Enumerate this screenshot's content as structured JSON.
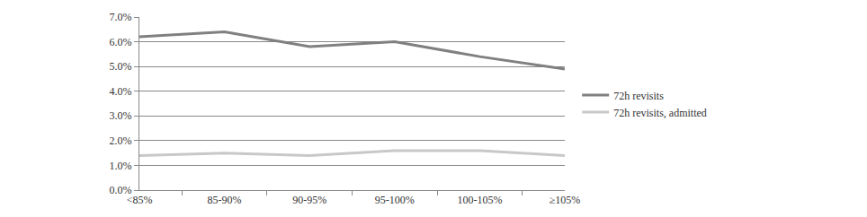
{
  "chart_data": {
    "type": "line",
    "categories": [
      "<85%",
      "85-90%",
      "90-95%",
      "95-100%",
      "100-105%",
      "≥105%"
    ],
    "series": [
      {
        "name": "72h revisits",
        "color": "#808080",
        "values": [
          6.2,
          6.4,
          5.8,
          6.0,
          5.4,
          4.9
        ]
      },
      {
        "name": "72h revisits, admitted",
        "color": "#c8c8c8",
        "values": [
          1.4,
          1.5,
          1.4,
          1.6,
          1.6,
          1.4
        ]
      }
    ],
    "ylim": [
      0,
      7
    ],
    "yticks": [
      {
        "value": 0,
        "label": "0.0%"
      },
      {
        "value": 1,
        "label": "1.0%"
      },
      {
        "value": 2,
        "label": "2.0%"
      },
      {
        "value": 3,
        "label": "3.0%"
      },
      {
        "value": 4,
        "label": "4.0%"
      },
      {
        "value": 5,
        "label": "5.0%"
      },
      {
        "value": 6,
        "label": "6.0%"
      },
      {
        "value": 7,
        "label": "7.0%"
      }
    ],
    "grid": true,
    "legend": "right"
  }
}
